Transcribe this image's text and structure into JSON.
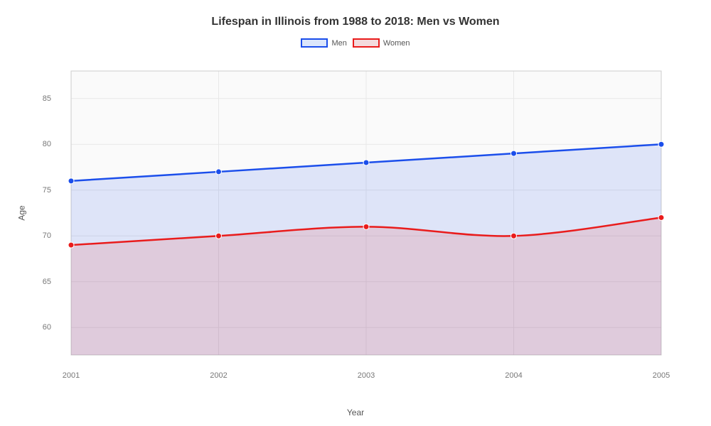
{
  "chart": {
    "type": "area",
    "title": "Lifespan in Illinois from 1988 to 2018: Men vs Women",
    "title_fontsize": 16,
    "title_fontweight": "bold",
    "title_color": "#333333",
    "background_color": "#ffffff",
    "plot_background_color": "#fafafa",
    "grid_color": "#e8e8e8",
    "axis_line_color": "#cccccc",
    "tick_label_color": "#777777",
    "axis_label_color": "#555555",
    "xlabel": "Year",
    "ylabel": "Age",
    "label_fontsize": 12,
    "tick_fontsize": 11,
    "xlim": [
      2001,
      2005
    ],
    "ylim": [
      57,
      88
    ],
    "yticks": [
      60,
      65,
      70,
      75,
      80,
      85
    ],
    "xticks": [
      2001,
      2002,
      2003,
      2004,
      2005
    ],
    "line_width": 2.5,
    "marker_radius": 4,
    "fill_opacity": 0.12,
    "legend": {
      "position": "top-center",
      "items": [
        {
          "label": "Men",
          "border_color": "#1b4eeb",
          "fill_color": "#dbe6fb"
        },
        {
          "label": "Women",
          "border_color": "#e91c1c",
          "fill_color": "#f4dadd"
        }
      ]
    },
    "series": [
      {
        "name": "Men",
        "x": [
          2001,
          2002,
          2003,
          2004,
          2005
        ],
        "y": [
          76,
          77,
          78,
          79,
          80
        ],
        "line_color": "#1b4eeb",
        "marker_fill": "#1b4eeb",
        "marker_stroke": "#ffffff",
        "fill_color": "#1b4eeb",
        "curve": "smooth"
      },
      {
        "name": "Women",
        "x": [
          2001,
          2002,
          2003,
          2004,
          2005
        ],
        "y": [
          69,
          70,
          71,
          70,
          72
        ],
        "line_color": "#e91c1c",
        "marker_fill": "#e91c1c",
        "marker_stroke": "#ffffff",
        "fill_color": "#e91c1c",
        "curve": "smooth"
      }
    ]
  }
}
